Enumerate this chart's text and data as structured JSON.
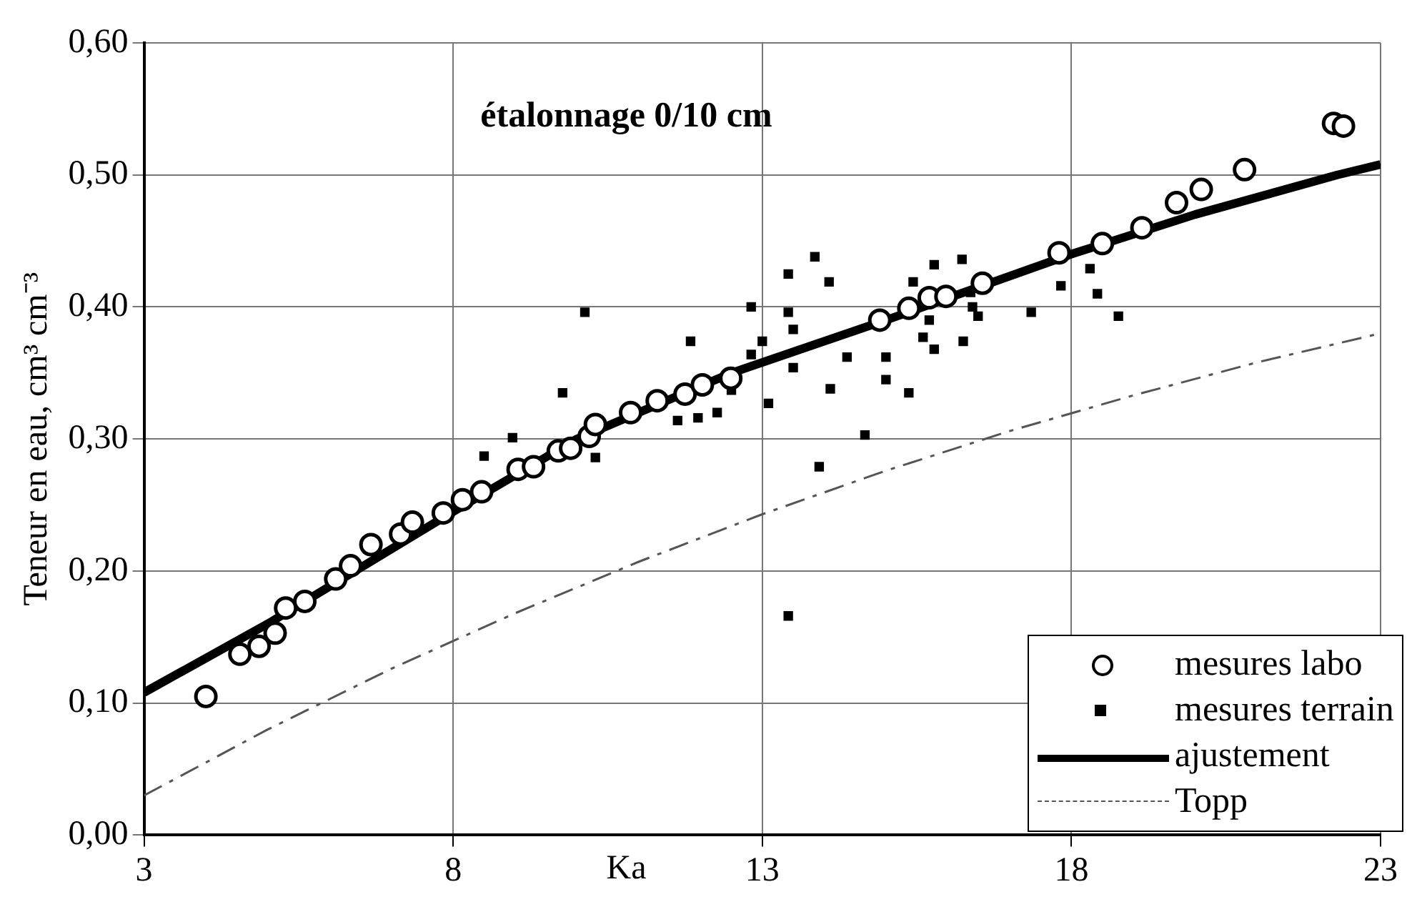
{
  "chart_data": {
    "type": "scatter",
    "xlabel": "Ka",
    "ylabel": "Teneur en eau, cm³ cm⁻³",
    "annotations": [
      "étalonnage 0/10 cm"
    ],
    "xlim": [
      3,
      23
    ],
    "xticks": [
      3,
      8,
      13,
      18,
      23
    ],
    "ylim": [
      0,
      0.6
    ],
    "yticks": [
      {
        "value": 0,
        "label": "0,00"
      },
      {
        "value": 0.1,
        "label": "0,10"
      },
      {
        "value": 0.2,
        "label": "0,20"
      },
      {
        "value": 0.3,
        "label": "0,30"
      },
      {
        "value": 0.4,
        "label": "0,40"
      },
      {
        "value": 0.5,
        "label": "0,50"
      },
      {
        "value": 0.6,
        "label": "0,60"
      }
    ],
    "grid": true,
    "legend": "bottom right",
    "series": [
      {
        "name": "mesures labo",
        "marker": "circle",
        "color": "#000000",
        "x": [
          4.0,
          4.55,
          4.86,
          5.12,
          5.29,
          5.6,
          6.1,
          6.34,
          6.67,
          7.15,
          7.34,
          7.84,
          8.15,
          8.46,
          9.05,
          9.3,
          9.7,
          9.9,
          10.2,
          10.3,
          10.87,
          11.3,
          11.75,
          12.03,
          12.49,
          14.9,
          15.37,
          15.7,
          15.97,
          16.56,
          17.8,
          18.5,
          19.14,
          19.7,
          20.1,
          20.8,
          22.24,
          22.4
        ],
        "values": [
          0.105,
          0.137,
          0.143,
          0.153,
          0.172,
          0.177,
          0.194,
          0.204,
          0.22,
          0.228,
          0.237,
          0.244,
          0.254,
          0.26,
          0.277,
          0.279,
          0.291,
          0.293,
          0.302,
          0.311,
          0.32,
          0.329,
          0.334,
          0.341,
          0.346,
          0.39,
          0.399,
          0.407,
          0.408,
          0.418,
          0.441,
          0.448,
          0.46,
          0.479,
          0.489,
          0.504,
          0.539,
          0.537
        ]
      },
      {
        "name": "mesures terrain",
        "marker": "square",
        "color": "#000000",
        "x": [
          10.13,
          9.77,
          8.96,
          8.5,
          10.3,
          11.84,
          11.63,
          11.96,
          12.27,
          12.5,
          12.82,
          12.82,
          13.0,
          13.1,
          13.42,
          13.42,
          13.5,
          13.5,
          13.42,
          13.85,
          14.08,
          14.1,
          14.37,
          14.66,
          13.92,
          15.0,
          15.0,
          15.37,
          15.44,
          15.6,
          15.7,
          15.78,
          15.78,
          16.23,
          16.25,
          16.37,
          16.4,
          16.49,
          17.35,
          18.3,
          17.83,
          18.42,
          18.76
        ],
        "values": [
          0.396,
          0.335,
          0.301,
          0.287,
          0.286,
          0.374,
          0.314,
          0.316,
          0.32,
          0.337,
          0.4,
          0.364,
          0.374,
          0.327,
          0.425,
          0.396,
          0.383,
          0.354,
          0.166,
          0.438,
          0.419,
          0.338,
          0.362,
          0.303,
          0.279,
          0.362,
          0.345,
          0.335,
          0.419,
          0.377,
          0.39,
          0.432,
          0.368,
          0.436,
          0.374,
          0.411,
          0.4,
          0.393,
          0.396,
          0.429,
          0.416,
          0.41,
          0.393
        ]
      },
      {
        "name": "ajustement",
        "type": "line",
        "line_style": "solid",
        "color": "#000000",
        "x": [
          3,
          5,
          8,
          10,
          12.5,
          15,
          18,
          20,
          22.3,
          23
        ],
        "values": [
          0.108,
          0.16,
          0.245,
          0.3,
          0.35,
          0.39,
          0.44,
          0.47,
          0.5,
          0.508
        ]
      },
      {
        "name": "Topp",
        "type": "line",
        "line_style": "dashed",
        "color": "#555555",
        "x": [
          3,
          5,
          7,
          9,
          11,
          13,
          15,
          17,
          19,
          21,
          23
        ],
        "values": [
          0.03,
          0.08,
          0.126,
          0.168,
          0.207,
          0.243,
          0.276,
          0.306,
          0.333,
          0.358,
          0.38
        ]
      }
    ]
  }
}
